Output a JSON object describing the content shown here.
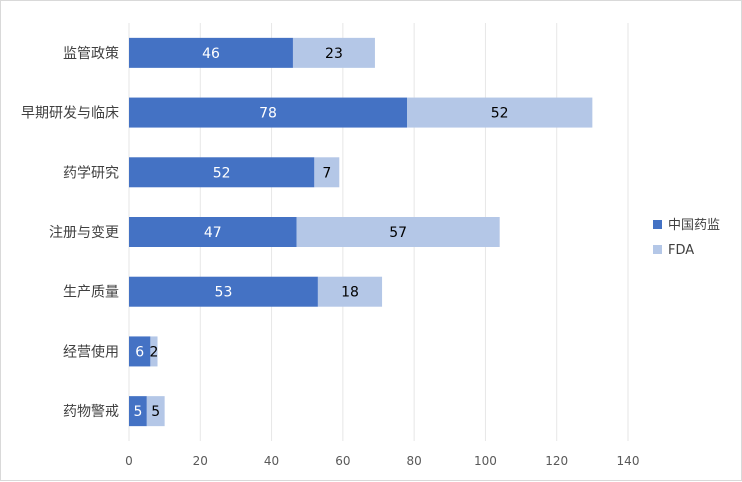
{
  "chart_data": {
    "type": "bar",
    "orientation": "horizontal",
    "stacked": true,
    "categories": [
      "监管政策",
      "早期研发与临床",
      "药学研究",
      "注册与变更",
      "生产质量",
      "经营使用",
      "药物警戒"
    ],
    "series": [
      {
        "name": "中国药监",
        "color": "#4472c4",
        "values": [
          46,
          78,
          52,
          47,
          53,
          6,
          5
        ]
      },
      {
        "name": "FDA",
        "color": "#b4c7e7",
        "values": [
          23,
          52,
          7,
          57,
          18,
          2,
          5
        ]
      }
    ],
    "xlim": [
      0,
      140
    ],
    "xticks": [
      0,
      20,
      40,
      60,
      80,
      100,
      120,
      140
    ],
    "grid": "vertical",
    "legend_position": "right"
  }
}
